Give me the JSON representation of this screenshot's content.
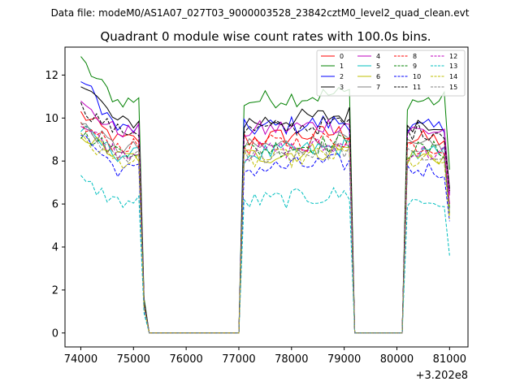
{
  "figure": {
    "suptitle": "Data file: modeM0/AS1A07_027T03_9000003528_23842cztM0_level2_quad_clean.evt"
  },
  "chart_data": {
    "type": "line",
    "title": "Quadrant 0 module wise count rates with 100.0s bins.",
    "xlabel": "",
    "ylabel": "",
    "x_offset_label": "+3.202e8",
    "xlim": [
      73700,
      81350
    ],
    "ylim": [
      -0.65,
      13.3
    ],
    "x_ticks": [
      74000,
      75000,
      76000,
      77000,
      78000,
      79000,
      80000,
      81000
    ],
    "x_tick_labels": [
      "74000",
      "75000",
      "76000",
      "77000",
      "78000",
      "79000",
      "80000",
      "81000"
    ],
    "y_ticks": [
      0,
      2,
      4,
      6,
      8,
      10,
      12
    ],
    "y_tick_labels": [
      "0",
      "2",
      "4",
      "6",
      "8",
      "10",
      "12"
    ],
    "grid": false,
    "legend_position": "upper-right",
    "legend_columns": 4,
    "segments": [
      {
        "start": 74000,
        "end": 75100,
        "drop_to": 75300
      },
      {
        "start": 77100,
        "end": 79100,
        "rise_from": 77000,
        "drop_to": 79200
      },
      {
        "start": 80200,
        "end": 80900,
        "rise_from": 80100,
        "drop_to": 81000
      }
    ],
    "series": [
      {
        "name": "0",
        "color": "#ff0000",
        "dashed": false,
        "level": 9.0,
        "start": 10.2,
        "final": 6.6
      },
      {
        "name": "1",
        "color": "#008000",
        "dashed": false,
        "level": 10.8,
        "start": 12.6,
        "final": 7.6
      },
      {
        "name": "2",
        "color": "#0000ff",
        "dashed": false,
        "level": 9.5,
        "start": 11.9,
        "final": 6.5
      },
      {
        "name": "3",
        "color": "#000000",
        "dashed": false,
        "level": 9.8,
        "start": 11.8,
        "final": 6.7
      },
      {
        "name": "4",
        "color": "#bf00bf",
        "dashed": false,
        "level": 9.4,
        "start": 10.6,
        "final": 6.4
      },
      {
        "name": "5",
        "color": "#00bfbf",
        "dashed": false,
        "level": 8.3,
        "start": 9.5,
        "final": 5.6
      },
      {
        "name": "6",
        "color": "#bfbf00",
        "dashed": false,
        "level": 8.2,
        "start": 9.3,
        "final": 5.5
      },
      {
        "name": "7",
        "color": "#808080",
        "dashed": false,
        "level": 8.6,
        "start": 9.7,
        "final": 5.8
      },
      {
        "name": "8",
        "color": "#ff0000",
        "dashed": true,
        "level": 8.7,
        "start": 9.6,
        "final": 6.0
      },
      {
        "name": "9",
        "color": "#008000",
        "dashed": true,
        "level": 8.5,
        "start": 9.2,
        "final": 5.8
      },
      {
        "name": "10",
        "color": "#0000ff",
        "dashed": true,
        "level": 7.6,
        "start": 9.3,
        "final": 5.2
      },
      {
        "name": "11",
        "color": "#000000",
        "dashed": true,
        "level": 9.4,
        "start": 10.5,
        "final": 6.6
      },
      {
        "name": "12",
        "color": "#bf00bf",
        "dashed": true,
        "level": 8.4,
        "start": 9.7,
        "final": 6.0
      },
      {
        "name": "13",
        "color": "#00bfbf",
        "dashed": true,
        "level": 6.1,
        "start": 7.1,
        "final": 3.6
      },
      {
        "name": "14",
        "color": "#bfbf00",
        "dashed": true,
        "level": 8.0,
        "start": 9.0,
        "final": 5.3
      },
      {
        "name": "15",
        "color": "#808080",
        "dashed": true,
        "level": 8.2,
        "start": 9.5,
        "final": 5.6
      }
    ]
  }
}
